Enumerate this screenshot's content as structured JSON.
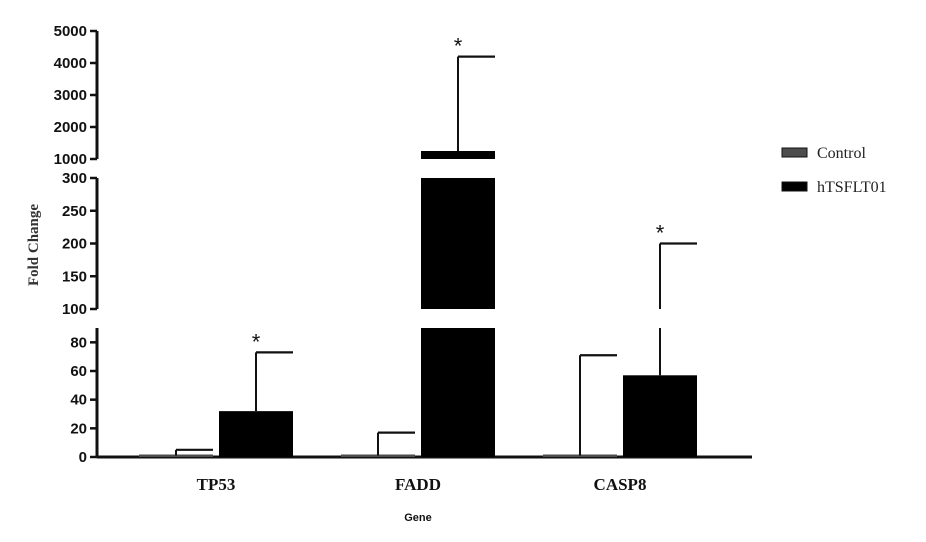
{
  "chart_data": {
    "type": "bar",
    "xlabel": "Gene",
    "ylabel": "Fold Change",
    "categories": [
      "TP53",
      "FADD",
      "CASP8"
    ],
    "series": [
      {
        "name": "Control",
        "color": "#4d4d4d",
        "values": [
          1,
          1,
          1
        ],
        "error": [
          5,
          17,
          71
        ]
      },
      {
        "name": "hTSFLT01",
        "color": "#000000",
        "values": [
          32,
          1250,
          57
        ],
        "error": [
          73,
          4200,
          200
        ]
      }
    ],
    "significance": [
      {
        "category": "TP53",
        "series": "hTSFLT01",
        "mark": "*"
      },
      {
        "category": "FADD",
        "series": "hTSFLT01",
        "mark": "*"
      },
      {
        "category": "CASP8",
        "series": "hTSFLT01",
        "mark": "*"
      }
    ],
    "y_segments": [
      {
        "ylim": [
          0,
          90
        ],
        "ticks": [
          0,
          20,
          40,
          60,
          80
        ]
      },
      {
        "ylim": [
          100,
          300
        ],
        "ticks": [
          100,
          150,
          200,
          250,
          300
        ]
      },
      {
        "ylim": [
          1000,
          5000
        ],
        "ticks": [
          1000,
          2000,
          3000,
          4000,
          5000
        ]
      }
    ],
    "legend_position": "right",
    "grid": false
  }
}
